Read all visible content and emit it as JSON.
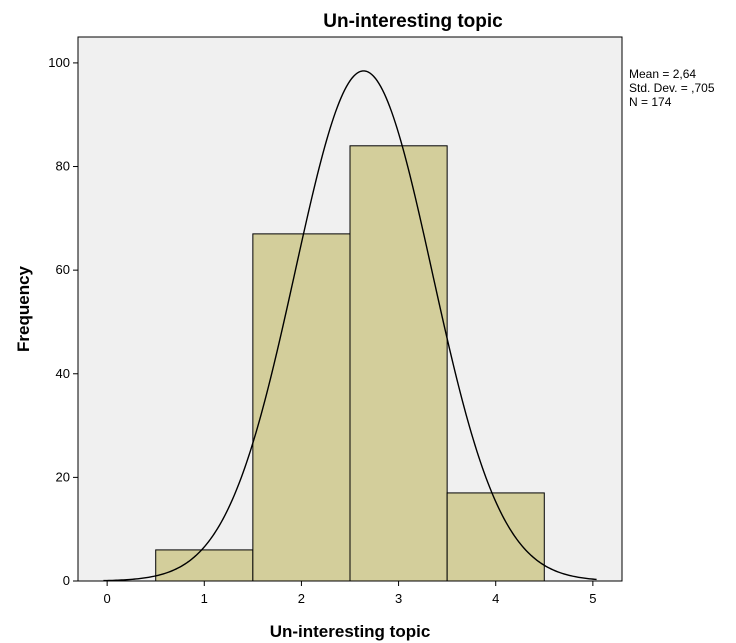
{
  "chart_data": {
    "type": "bar",
    "subtype": "histogram",
    "title": "Un-interesting topic",
    "xlabel": "Un-interesting topic",
    "ylabel": "Frequency",
    "xlim": [
      -0.3,
      5.3
    ],
    "ylim": [
      0,
      105
    ],
    "x_ticks": [
      0,
      1,
      2,
      3,
      4,
      5
    ],
    "y_ticks": [
      0,
      20,
      40,
      60,
      80,
      100
    ],
    "bins": [
      {
        "x": 1,
        "value": 6
      },
      {
        "x": 2,
        "value": 67
      },
      {
        "x": 3,
        "value": 84
      },
      {
        "x": 4,
        "value": 17
      }
    ],
    "bin_width": 1,
    "normal_curve": {
      "mean": 2.64,
      "std_dev": 0.705,
      "n": 174
    },
    "stats_labels": [
      "Mean = 2,64",
      "Std. Dev. = ,705",
      "N = 174"
    ],
    "grid": false,
    "legend": "right",
    "colors": {
      "plot_background": "#f0f0f0",
      "bar_fill": "#d3ce9b",
      "bar_stroke": "#000000",
      "curve": "#000000"
    }
  }
}
